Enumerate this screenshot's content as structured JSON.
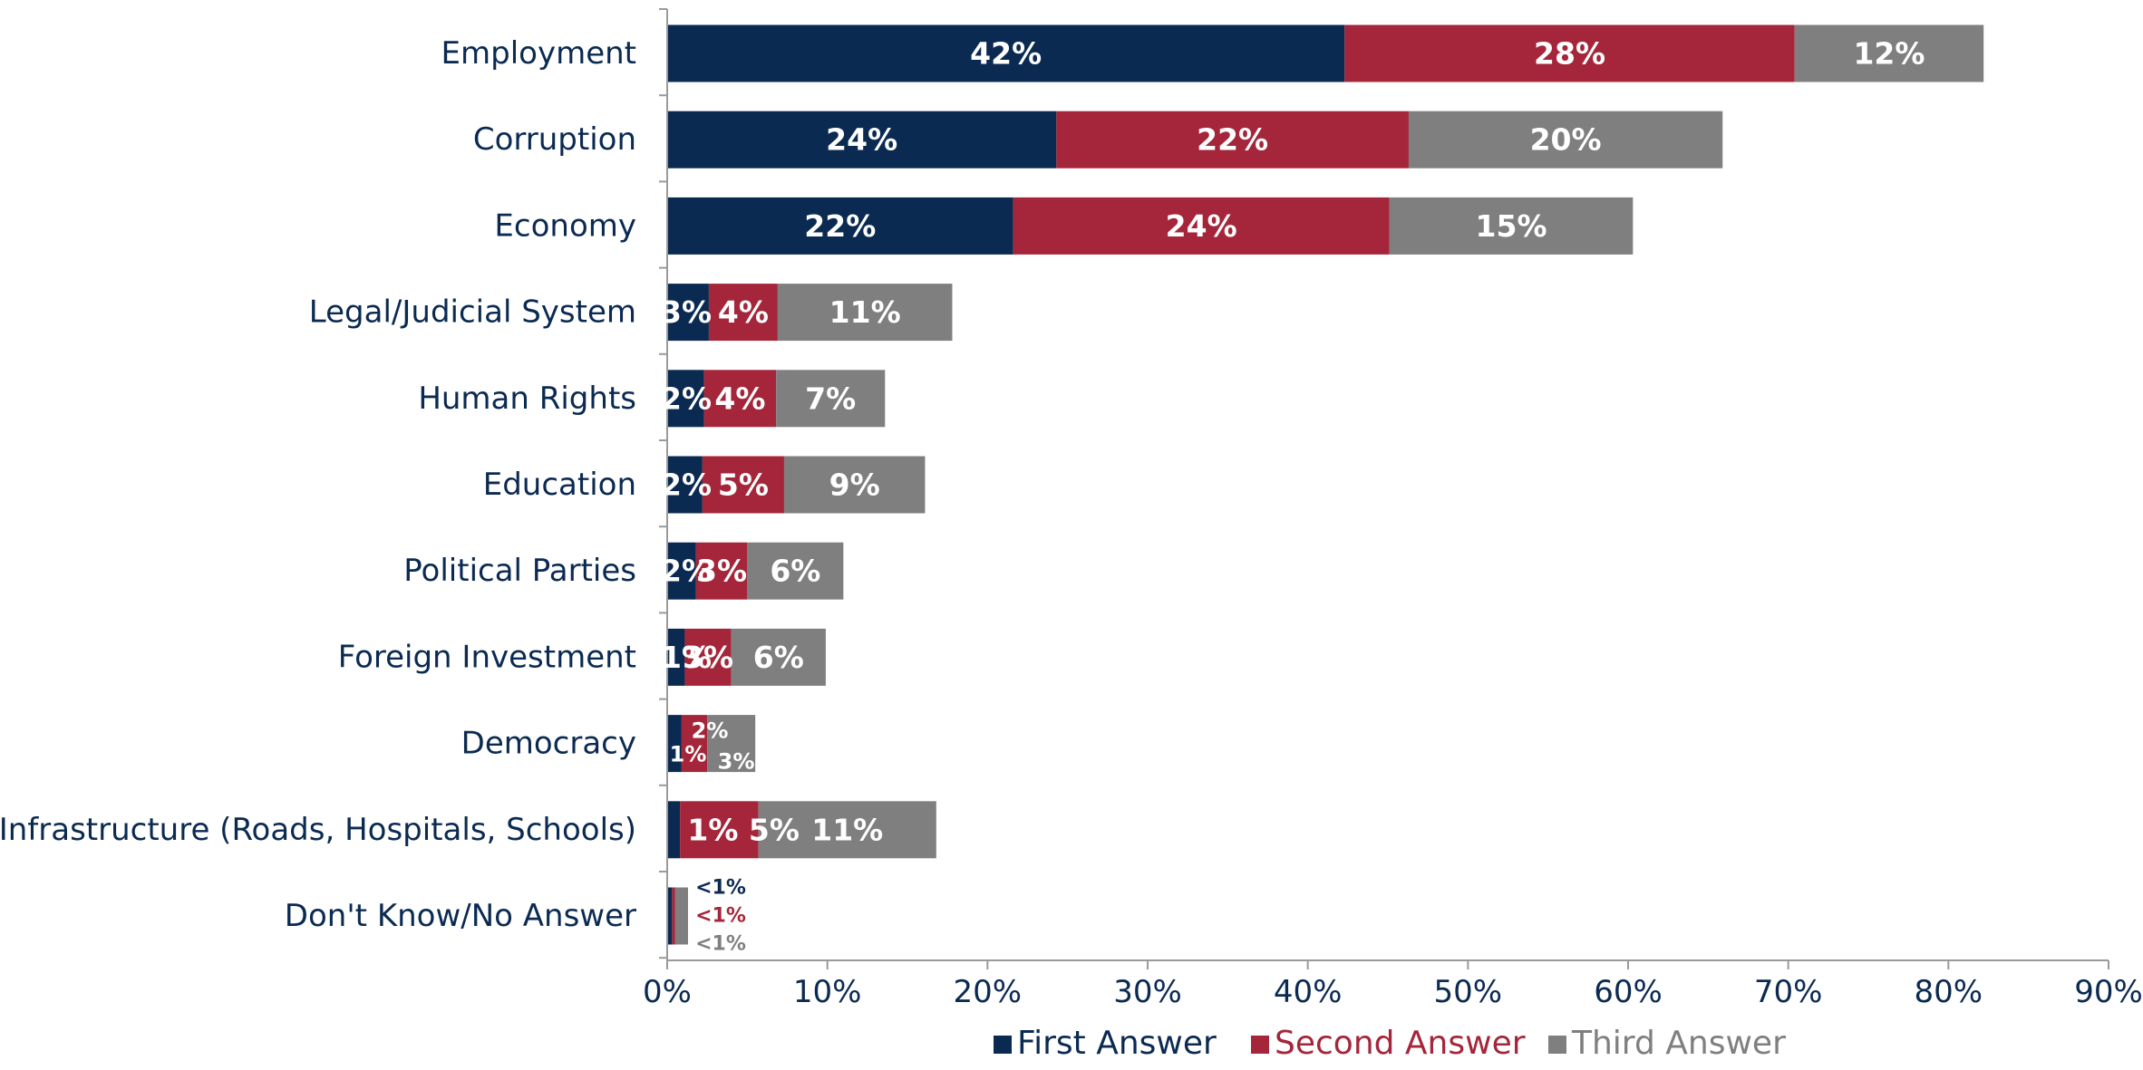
{
  "chart_data": {
    "type": "bar",
    "orientation": "horizontal",
    "stacked": true,
    "categories": [
      "Employment",
      "Corruption",
      "Economy",
      "Legal/Judicial System",
      "Human Rights",
      "Education",
      "Political Parties",
      "Foreign Investment",
      "Democracy",
      "Infrastructure (Roads, Hospitals, Schools)",
      "Don't Know/No Answer"
    ],
    "series": [
      {
        "name": "First Answer",
        "color": "#0b2a52",
        "values": [
          42.3,
          24.3,
          21.6,
          2.6,
          2.3,
          2.2,
          1.8,
          1.1,
          0.9,
          0.8,
          0.3
        ],
        "labels": [
          "42%",
          "24%",
          "22%",
          "3%",
          "2%",
          "2%",
          "2%",
          "1%",
          "1%",
          "",
          "<1%"
        ]
      },
      {
        "name": "Second Answer",
        "color": "#a5263a",
        "values": [
          28.1,
          22.0,
          23.5,
          4.3,
          4.5,
          5.1,
          3.2,
          2.9,
          1.6,
          4.9,
          0.2
        ],
        "labels": [
          "28%",
          "22%",
          "24%",
          "4%",
          "4%",
          "5%",
          "3%",
          "3%",
          "2%",
          "1% 5%",
          "<1%"
        ]
      },
      {
        "name": "Third Answer",
        "color": "#7f7f80",
        "values": [
          11.8,
          19.6,
          15.2,
          10.9,
          6.8,
          8.8,
          6.0,
          5.9,
          3.0,
          11.1,
          0.8
        ],
        "labels": [
          "12%",
          "20%",
          "15%",
          "11%",
          "7%",
          "9%",
          "6%",
          "6%",
          "3%",
          "11%",
          "<1%"
        ]
      }
    ],
    "xlim": [
      0,
      90
    ],
    "x_ticks": [
      "0%",
      "10%",
      "20%",
      "30%",
      "40%",
      "50%",
      "60%",
      "70%",
      "80%",
      "90%"
    ],
    "legend_position": "bottom",
    "grid": false
  }
}
